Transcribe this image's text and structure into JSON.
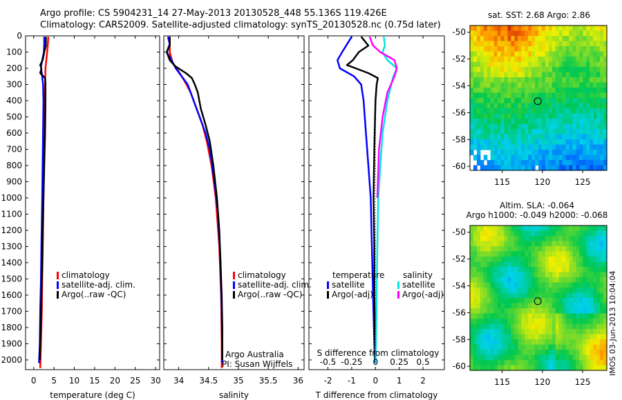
{
  "header": {
    "line1": "Argo profile: CS 5904231_14 27-May-2013 20130528_448 55.136S 119.426E",
    "line2": "Climatology: CARS2009. Satellite-adjusted climatology: synTS_20130528.nc (0.75d later)"
  },
  "side_label": "IMOS 03-Jun-2013 10:04:04",
  "colors": {
    "climatology": "#ff0000",
    "satellite": "#0000ff",
    "argo": "#000000",
    "salinity_satellite": "#00e5e5",
    "salinity_argo": "#ff00ff"
  },
  "chart_data": [
    {
      "type": "line",
      "xlabel": "temperature (deg C)",
      "xlim": [
        -2,
        31
      ],
      "xticks": [
        "0",
        "5",
        "10",
        "15",
        "20",
        "25",
        "30"
      ],
      "ylim": [
        2060,
        0
      ],
      "yticks": [
        "0",
        "100",
        "200",
        "300",
        "400",
        "500",
        "600",
        "700",
        "800",
        "900",
        "1000",
        "1100",
        "1200",
        "1300",
        "1400",
        "1500",
        "1600",
        "1700",
        "1800",
        "1900",
        "2000"
      ],
      "legend": [
        "climatology",
        "satellite-adj. clim.",
        "Argo(..raw -QC)"
      ],
      "series": [
        {
          "name": "climatology",
          "points": [
            [
              3.6,
              5
            ],
            [
              3.5,
              50
            ],
            [
              3.3,
              100
            ],
            [
              3.1,
              150
            ],
            [
              2.9,
              200
            ],
            [
              2.8,
              300
            ],
            [
              2.7,
              400
            ],
            [
              2.6,
              600
            ],
            [
              2.5,
              800
            ],
            [
              2.4,
              1000
            ],
            [
              2.3,
              1200
            ],
            [
              2.1,
              1500
            ],
            [
              2.0,
              1700
            ],
            [
              1.8,
              1900
            ],
            [
              1.6,
              2050
            ]
          ]
        },
        {
          "name": "satellite-adj. clim.",
          "points": [
            [
              2.6,
              5
            ],
            [
              2.6,
              50
            ],
            [
              2.5,
              100
            ],
            [
              2.1,
              150
            ],
            [
              1.8,
              190
            ],
            [
              2.0,
              230
            ],
            [
              2.3,
              300
            ],
            [
              2.4,
              400
            ],
            [
              2.3,
              600
            ],
            [
              2.2,
              800
            ],
            [
              2.1,
              1000
            ],
            [
              1.9,
              1300
            ],
            [
              1.8,
              1500
            ],
            [
              1.6,
              1700
            ],
            [
              1.5,
              1900
            ],
            [
              1.3,
              2020
            ]
          ]
        },
        {
          "name": "Argo(..raw -QC)",
          "points": [
            [
              3.0,
              5
            ],
            [
              3.0,
              60
            ],
            [
              2.6,
              100
            ],
            [
              2.2,
              150
            ],
            [
              1.6,
              180
            ],
            [
              1.9,
              200
            ],
            [
              1.6,
              230
            ],
            [
              2.8,
              260
            ],
            [
              2.9,
              300
            ],
            [
              2.9,
              400
            ],
            [
              2.8,
              600
            ],
            [
              2.6,
              800
            ],
            [
              2.4,
              1000
            ],
            [
              2.2,
              1200
            ],
            [
              2.1,
              1400
            ],
            [
              1.9,
              1600
            ],
            [
              1.7,
              1800
            ],
            [
              1.5,
              2000
            ]
          ]
        }
      ]
    },
    {
      "type": "line",
      "xlabel": "salinity",
      "xlim": [
        33.75,
        36.1
      ],
      "xticks": [
        "34",
        "34.5",
        "35",
        "35.5",
        "36"
      ],
      "ylim": [
        2060,
        0
      ],
      "legend": [
        "climatology",
        "satellite-adj. clim.",
        "Argo(..raw -QC)"
      ],
      "annotation": [
        "Argo Australia",
        "PI: Susan Wijffels"
      ],
      "series": [
        {
          "name": "climatology",
          "points": [
            [
              33.85,
              5
            ],
            [
              33.85,
              100
            ],
            [
              33.9,
              170
            ],
            [
              34.0,
              220
            ],
            [
              34.1,
              280
            ],
            [
              34.2,
              350
            ],
            [
              34.3,
              450
            ],
            [
              34.4,
              550
            ],
            [
              34.47,
              650
            ],
            [
              34.55,
              800
            ],
            [
              34.62,
              1000
            ],
            [
              34.68,
              1300
            ],
            [
              34.71,
              1600
            ],
            [
              34.72,
              1900
            ],
            [
              34.72,
              2050
            ]
          ]
        },
        {
          "name": "satellite-adj. clim.",
          "points": [
            [
              33.82,
              5
            ],
            [
              33.85,
              50
            ],
            [
              33.8,
              100
            ],
            [
              33.88,
              150
            ],
            [
              33.95,
              200
            ],
            [
              34.05,
              250
            ],
            [
              34.15,
              300
            ],
            [
              34.25,
              400
            ],
            [
              34.35,
              500
            ],
            [
              34.45,
              600
            ],
            [
              34.52,
              700
            ],
            [
              34.6,
              900
            ],
            [
              34.66,
              1100
            ],
            [
              34.7,
              1400
            ],
            [
              34.72,
              1700
            ],
            [
              34.73,
              2020
            ]
          ]
        },
        {
          "name": "Argo(..raw -QC)",
          "points": [
            [
              33.85,
              5
            ],
            [
              33.85,
              60
            ],
            [
              33.8,
              100
            ],
            [
              33.85,
              150
            ],
            [
              33.95,
              190
            ],
            [
              34.12,
              230
            ],
            [
              34.22,
              260
            ],
            [
              34.27,
              300
            ],
            [
              34.32,
              350
            ],
            [
              34.37,
              450
            ],
            [
              34.45,
              550
            ],
            [
              34.52,
              650
            ],
            [
              34.58,
              800
            ],
            [
              34.64,
              1000
            ],
            [
              34.68,
              1200
            ],
            [
              34.7,
              1400
            ],
            [
              34.72,
              1600
            ],
            [
              34.73,
              1800
            ],
            [
              34.73,
              2000
            ]
          ]
        }
      ]
    },
    {
      "type": "line",
      "xlabel": "T difference from climatology",
      "title": "S difference from climatology",
      "xlim": [
        -2.8,
        2.9
      ],
      "xticks": [
        "-2",
        "-1",
        "0",
        "1",
        "2"
      ],
      "top_xticks": [
        "-0.5",
        "-0.25",
        "0",
        "0.25",
        "0.5"
      ],
      "ylim": [
        2060,
        0
      ],
      "legend_temperature": {
        "heading": "temperature",
        "items": [
          "satellite",
          "Argo(-adj)"
        ]
      },
      "legend_salinity": {
        "heading": "salinity",
        "items": [
          "satellite",
          "Argo(-adj)"
        ]
      },
      "series": [
        {
          "name": "satellite",
          "points": [
            [
              -1.0,
              5
            ],
            [
              -1.4,
              100
            ],
            [
              -1.6,
              150
            ],
            [
              -1.5,
              200
            ],
            [
              -0.9,
              250
            ],
            [
              -0.6,
              300
            ],
            [
              -0.5,
              400
            ],
            [
              -0.4,
              600
            ],
            [
              -0.3,
              800
            ],
            [
              -0.2,
              1000
            ],
            [
              -0.15,
              1300
            ],
            [
              -0.1,
              1600
            ],
            [
              -0.05,
              1900
            ],
            [
              -0.02,
              2020
            ]
          ]
        },
        {
          "name": "Argo(-adj)",
          "points": [
            [
              -0.6,
              5
            ],
            [
              -0.3,
              60
            ],
            [
              -0.7,
              100
            ],
            [
              -0.95,
              150
            ],
            [
              -1.2,
              180
            ],
            [
              -0.3,
              230
            ],
            [
              0.1,
              260
            ],
            [
              0.05,
              300
            ],
            [
              0.0,
              400
            ],
            [
              -0.05,
              700
            ],
            [
              -0.08,
              1000
            ],
            [
              -0.05,
              1300
            ],
            [
              -0.05,
              1600
            ],
            [
              -0.02,
              1900
            ],
            [
              -0.02,
              2000
            ]
          ]
        },
        {
          "name": "satellite",
          "points": [
            [
              0.35,
              5
            ],
            [
              0.4,
              60
            ],
            [
              0.3,
              100
            ],
            [
              0.5,
              150
            ],
            [
              0.9,
              200
            ],
            [
              0.75,
              250
            ],
            [
              0.5,
              400
            ],
            [
              0.3,
              600
            ],
            [
              0.2,
              800
            ],
            [
              0.12,
              1000
            ],
            [
              0.08,
              1300
            ],
            [
              0.05,
              1600
            ],
            [
              0.02,
              1900
            ],
            [
              0.0,
              2020
            ]
          ]
        },
        {
          "name": "Argo(-adj)",
          "points": [
            [
              -0.25,
              5
            ],
            [
              -0.1,
              60
            ],
            [
              0.2,
              100
            ],
            [
              0.8,
              150
            ],
            [
              0.9,
              200
            ],
            [
              0.8,
              250
            ],
            [
              0.5,
              350
            ],
            [
              0.3,
              500
            ],
            [
              0.15,
              700
            ],
            [
              0.08,
              1000
            ]
          ]
        }
      ]
    },
    {
      "type": "heatmap",
      "title": "sat. SST: 2.68  Argo: 2.86",
      "xlim": [
        111,
        128
      ],
      "ylim": [
        -60.3,
        -49.5
      ],
      "xticks": [
        "115",
        "120",
        "125"
      ],
      "yticks": [
        "-50",
        "-52",
        "-54",
        "-56",
        "-58",
        "-60"
      ],
      "marker": {
        "lon": 119.43,
        "lat": -55.14
      }
    },
    {
      "type": "heatmap",
      "title": [
        "Altim. SLA: -0.064",
        "Argo h1000: -0.049 h2000: -0.068"
      ],
      "xlim": [
        111,
        128
      ],
      "ylim": [
        -60.3,
        -49.5
      ],
      "xticks": [
        "115",
        "120",
        "125"
      ],
      "yticks": [
        "-50",
        "-52",
        "-54",
        "-56",
        "-58",
        "-60"
      ],
      "marker": {
        "lon": 119.43,
        "lat": -55.14
      }
    }
  ]
}
